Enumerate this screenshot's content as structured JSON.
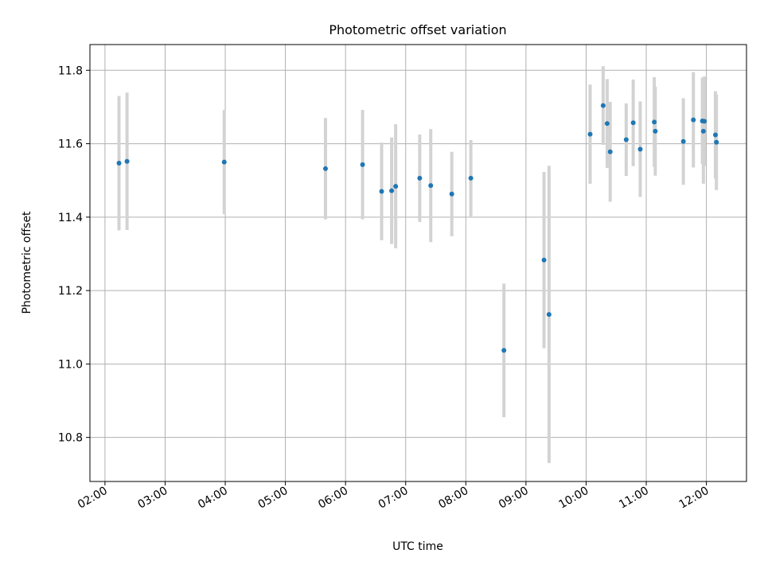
{
  "chart_data": {
    "type": "scatter",
    "title": "Photometric offset variation",
    "xlabel": "UTC time",
    "ylabel": "Photometric offset",
    "xlim": [
      "01:45",
      "12:40"
    ],
    "ylim": [
      10.68,
      11.87
    ],
    "x_ticks": [
      "02:00",
      "03:00",
      "04:00",
      "05:00",
      "06:00",
      "07:00",
      "08:00",
      "09:00",
      "10:00",
      "11:00",
      "12:00"
    ],
    "y_ticks": [
      "10.8",
      "11.0",
      "11.2",
      "11.4",
      "11.6",
      "11.8"
    ],
    "grid": true,
    "colors": {
      "points": "#1f77b4",
      "error_bars": "#d3d3d3",
      "grid": "#b0b0b0"
    },
    "series": [
      {
        "points": [
          {
            "time": "02:14",
            "value": 11.547,
            "error": 0.183
          },
          {
            "time": "02:22",
            "value": 11.552,
            "error": 0.187
          },
          {
            "time": "03:59",
            "value": 11.55,
            "error": 0.142
          },
          {
            "time": "05:40",
            "value": 11.532,
            "error": 0.138
          },
          {
            "time": "06:17",
            "value": 11.543,
            "error": 0.149
          },
          {
            "time": "06:36",
            "value": 11.47,
            "error": 0.133
          },
          {
            "time": "06:46",
            "value": 11.472,
            "error": 0.145
          },
          {
            "time": "06:50",
            "value": 11.484,
            "error": 0.169
          },
          {
            "time": "07:14",
            "value": 11.506,
            "error": 0.119
          },
          {
            "time": "07:25",
            "value": 11.486,
            "error": 0.154
          },
          {
            "time": "07:46",
            "value": 11.463,
            "error": 0.115
          },
          {
            "time": "08:05",
            "value": 11.506,
            "error": 0.104
          },
          {
            "time": "08:38",
            "value": 11.037,
            "error": 0.182
          },
          {
            "time": "09:18",
            "value": 11.283,
            "error": 0.24
          },
          {
            "time": "09:23",
            "value": 11.135,
            "error": 0.405
          },
          {
            "time": "10:04",
            "value": 11.626,
            "error": 0.135
          },
          {
            "time": "10:17",
            "value": 11.704,
            "error": 0.107
          },
          {
            "time": "10:21",
            "value": 11.655,
            "error": 0.121
          },
          {
            "time": "10:24",
            "value": 11.578,
            "error": 0.136
          },
          {
            "time": "10:40",
            "value": 11.611,
            "error": 0.099
          },
          {
            "time": "10:47",
            "value": 11.657,
            "error": 0.118
          },
          {
            "time": "10:54",
            "value": 11.585,
            "error": 0.13
          },
          {
            "time": "11:08",
            "value": 11.659,
            "error": 0.122
          },
          {
            "time": "11:09",
            "value": 11.634,
            "error": 0.121
          },
          {
            "time": "11:37",
            "value": 11.606,
            "error": 0.118
          },
          {
            "time": "11:47",
            "value": 11.665,
            "error": 0.13
          },
          {
            "time": "11:56",
            "value": 11.662,
            "error": 0.118
          },
          {
            "time": "11:57",
            "value": 11.634,
            "error": 0.143
          },
          {
            "time": "11:58",
            "value": 11.661,
            "error": 0.122
          },
          {
            "time": "12:09",
            "value": 11.624,
            "error": 0.119
          },
          {
            "time": "12:10",
            "value": 11.604,
            "error": 0.13
          }
        ]
      }
    ]
  }
}
